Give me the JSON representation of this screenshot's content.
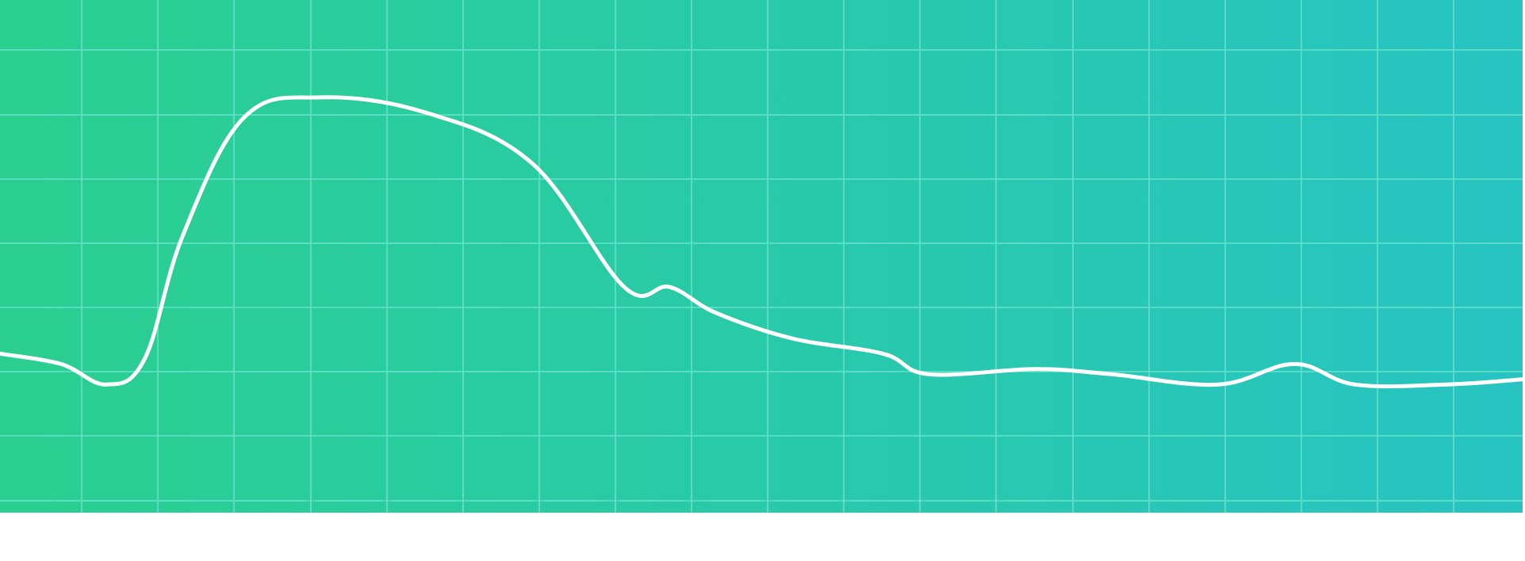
{
  "colors": {
    "gradient_start": "#2acf8f",
    "gradient_end": "#27c4c2",
    "grid": "#5fe0c9",
    "line": "#ffffff",
    "page_background": "#ffffff"
  },
  "chart_data": {
    "type": "line",
    "title": "",
    "xlabel": "",
    "ylabel": "",
    "grid": true,
    "legend": "none",
    "x_tick_labels": [],
    "y_tick_labels": [],
    "xlim": [
      0,
      100
    ],
    "ylim": [
      0,
      100
    ],
    "series": [
      {
        "values": [
          {
            "x": 0,
            "y": 31
          },
          {
            "x": 4,
            "y": 29
          },
          {
            "x": 7,
            "y": 25
          },
          {
            "x": 9.5,
            "y": 30
          },
          {
            "x": 12,
            "y": 54
          },
          {
            "x": 16,
            "y": 77
          },
          {
            "x": 21,
            "y": 81
          },
          {
            "x": 28,
            "y": 78
          },
          {
            "x": 35,
            "y": 68
          },
          {
            "x": 41,
            "y": 44
          },
          {
            "x": 44,
            "y": 44
          },
          {
            "x": 47,
            "y": 39
          },
          {
            "x": 52,
            "y": 34
          },
          {
            "x": 58,
            "y": 31
          },
          {
            "x": 61,
            "y": 27
          },
          {
            "x": 68,
            "y": 28
          },
          {
            "x": 73,
            "y": 27
          },
          {
            "x": 80,
            "y": 25
          },
          {
            "x": 85,
            "y": 29
          },
          {
            "x": 89,
            "y": 25
          },
          {
            "x": 95,
            "y": 25
          },
          {
            "x": 100,
            "y": 26
          }
        ]
      }
    ]
  }
}
